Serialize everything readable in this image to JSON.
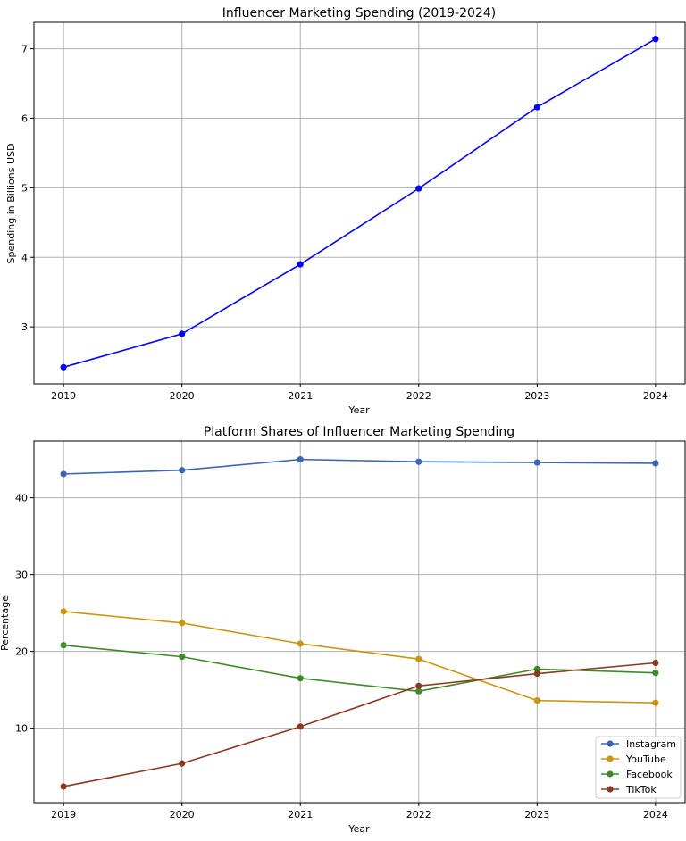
{
  "chart_data": [
    {
      "type": "line",
      "title": "Influencer Marketing Spending (2019-2024)",
      "xlabel": "Year",
      "ylabel": "Spending in Billions USD",
      "x": [
        2019,
        2020,
        2021,
        2022,
        2023,
        2024
      ],
      "xticks": [
        "2019",
        "2020",
        "2021",
        "2022",
        "2023",
        "2024"
      ],
      "yticks": [
        "3",
        "4",
        "5",
        "6",
        "7"
      ],
      "ylim": [
        2.18,
        7.38
      ],
      "xlim": [
        2018.75,
        2024.25
      ],
      "grid": true,
      "series": [
        {
          "color": "#0000ff",
          "values": [
            2.42,
            2.9,
            3.9,
            4.99,
            6.16,
            7.14
          ]
        }
      ]
    },
    {
      "type": "line",
      "title": "Platform Shares of Influencer Marketing Spending",
      "xlabel": "Year",
      "ylabel": "Percentage",
      "x": [
        2019,
        2020,
        2021,
        2022,
        2023,
        2024
      ],
      "xticks": [
        "2019",
        "2020",
        "2021",
        "2022",
        "2023",
        "2024"
      ],
      "yticks": [
        "10",
        "20",
        "30",
        "40"
      ],
      "ylim": [
        0.3,
        47.4
      ],
      "xlim": [
        2018.75,
        2024.25
      ],
      "grid": true,
      "legend": "bottom-right",
      "series": [
        {
          "name": "Instagram",
          "color": "#3a66b5",
          "values": [
            43.1,
            43.6,
            45.0,
            44.7,
            44.6,
            44.5
          ]
        },
        {
          "name": "YouTube",
          "color": "#c9960c",
          "values": [
            25.2,
            23.7,
            21.0,
            19.0,
            13.6,
            13.3
          ]
        },
        {
          "name": "Facebook",
          "color": "#3f8a28",
          "values": [
            20.8,
            19.3,
            16.5,
            14.8,
            17.7,
            17.2
          ]
        },
        {
          "name": "TikTok",
          "color": "#8a3a22",
          "values": [
            2.4,
            5.4,
            10.2,
            15.5,
            17.1,
            18.5
          ]
        }
      ]
    }
  ]
}
